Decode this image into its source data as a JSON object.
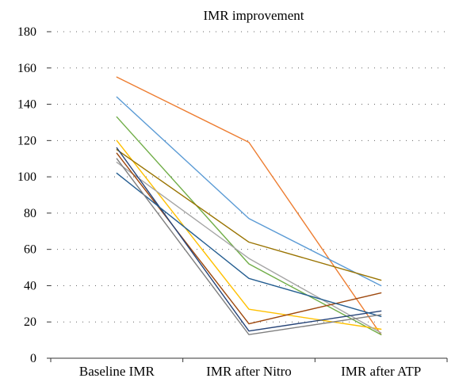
{
  "chart_data": {
    "type": "line",
    "title": "IMR improvement",
    "xlabel": "",
    "ylabel": "",
    "categories": [
      "Baseline IMR",
      "IMR after Nitro",
      "IMR after ATP"
    ],
    "y_ticks": [
      "0",
      "20",
      "40",
      "60",
      "80",
      "100",
      "120",
      "140",
      "160",
      "180"
    ],
    "ylim": [
      0,
      180
    ],
    "grid": true,
    "legend": "none",
    "series": [
      {
        "color": "#ED7D31",
        "values": [
          155,
          119,
          13
        ]
      },
      {
        "color": "#5B9BD5",
        "values": [
          144,
          77,
          40
        ]
      },
      {
        "color": "#70AD47",
        "values": [
          133,
          52,
          13
        ]
      },
      {
        "color": "#FFC000",
        "values": [
          120,
          27,
          16
        ]
      },
      {
        "color": "#997300",
        "values": [
          115,
          64,
          43
        ]
      },
      {
        "color": "#A5A5A5",
        "values": [
          108,
          55,
          14
        ]
      },
      {
        "color": "#9E480E",
        "values": [
          113,
          19,
          36
        ]
      },
      {
        "color": "#264478",
        "values": [
          116,
          15,
          26
        ]
      },
      {
        "color": "#255E91",
        "values": [
          102,
          44,
          23
        ]
      },
      {
        "color": "#7F7F7F",
        "values": [
          110,
          13,
          24
        ]
      }
    ]
  }
}
